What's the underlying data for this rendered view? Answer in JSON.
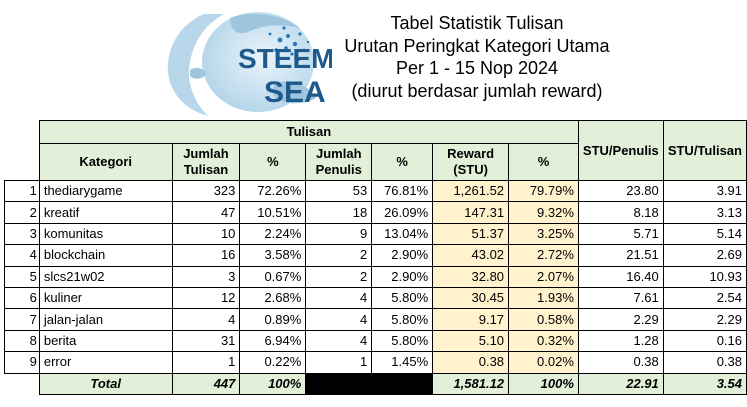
{
  "logo": {
    "line1": "STEEM",
    "line2": "SEA",
    "colors": {
      "globe": "#b9d8ea",
      "text": "#1f5a8c",
      "dots": "#2c79b4"
    }
  },
  "title": {
    "line1": "Tabel Statistik Tulisan",
    "line2": "Urutan Peringkat Kategori Utama",
    "line3": "Per 1 - 15 Nop 2024",
    "line4": "(diurut berdasar jumlah reward)"
  },
  "table": {
    "group_header": "Tulisan",
    "headers": {
      "kategori": "Kategori",
      "jumlah_tulisan": "Jumlah Tulisan",
      "pct1": "%",
      "jumlah_penulis": "Jumlah Penulis",
      "pct2": "%",
      "reward": "Reward (STU)",
      "pct3": "%",
      "stu_penulis": "STU/Penulis",
      "stu_tulisan": "STU/Tulisan"
    },
    "rows": [
      {
        "no": "1",
        "kategori": "thediarygame",
        "tulisan": "323",
        "pct_tulisan": "72.26%",
        "penulis": "53",
        "pct_penulis": "76.81%",
        "reward": "1,261.52",
        "pct_reward": "79.79%",
        "stu_penulis": "23.80",
        "stu_tulisan": "3.91"
      },
      {
        "no": "2",
        "kategori": "kreatif",
        "tulisan": "47",
        "pct_tulisan": "10.51%",
        "penulis": "18",
        "pct_penulis": "26.09%",
        "reward": "147.31",
        "pct_reward": "9.32%",
        "stu_penulis": "8.18",
        "stu_tulisan": "3.13"
      },
      {
        "no": "3",
        "kategori": "komunitas",
        "tulisan": "10",
        "pct_tulisan": "2.24%",
        "penulis": "9",
        "pct_penulis": "13.04%",
        "reward": "51.37",
        "pct_reward": "3.25%",
        "stu_penulis": "5.71",
        "stu_tulisan": "5.14"
      },
      {
        "no": "4",
        "kategori": "blockchain",
        "tulisan": "16",
        "pct_tulisan": "3.58%",
        "penulis": "2",
        "pct_penulis": "2.90%",
        "reward": "43.02",
        "pct_reward": "2.72%",
        "stu_penulis": "21.51",
        "stu_tulisan": "2.69"
      },
      {
        "no": "5",
        "kategori": "slcs21w02",
        "tulisan": "3",
        "pct_tulisan": "0.67%",
        "penulis": "2",
        "pct_penulis": "2.90%",
        "reward": "32.80",
        "pct_reward": "2.07%",
        "stu_penulis": "16.40",
        "stu_tulisan": "10.93"
      },
      {
        "no": "6",
        "kategori": "kuliner",
        "tulisan": "12",
        "pct_tulisan": "2.68%",
        "penulis": "4",
        "pct_penulis": "5.80%",
        "reward": "30.45",
        "pct_reward": "1.93%",
        "stu_penulis": "7.61",
        "stu_tulisan": "2.54"
      },
      {
        "no": "7",
        "kategori": "jalan-jalan",
        "tulisan": "4",
        "pct_tulisan": "0.89%",
        "penulis": "4",
        "pct_penulis": "5.80%",
        "reward": "9.17",
        "pct_reward": "0.58%",
        "stu_penulis": "2.29",
        "stu_tulisan": "2.29"
      },
      {
        "no": "8",
        "kategori": "berita",
        "tulisan": "31",
        "pct_tulisan": "6.94%",
        "penulis": "4",
        "pct_penulis": "5.80%",
        "reward": "5.10",
        "pct_reward": "0.32%",
        "stu_penulis": "1.28",
        "stu_tulisan": "0.16"
      },
      {
        "no": "9",
        "kategori": "error",
        "tulisan": "1",
        "pct_tulisan": "0.22%",
        "penulis": "1",
        "pct_penulis": "1.45%",
        "reward": "0.38",
        "pct_reward": "0.02%",
        "stu_penulis": "0.38",
        "stu_tulisan": "0.38"
      }
    ],
    "total": {
      "label": "Total",
      "tulisan": "447",
      "pct_tulisan": "100%",
      "reward": "1,581.12",
      "pct_reward": "100%",
      "stu_penulis": "22.91",
      "stu_tulisan": "3.54"
    }
  },
  "colors": {
    "header_green": "#e2efd9",
    "reward_yellow": "#fff2cc",
    "black_cell": "#000000"
  }
}
